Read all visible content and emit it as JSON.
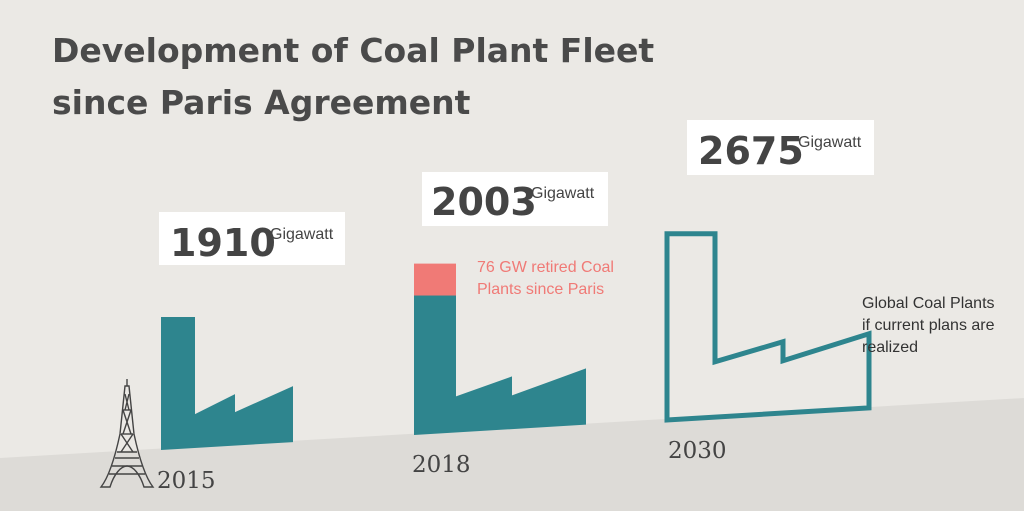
{
  "title": [
    "Development of Coal Plant Fleet",
    "since Paris Agreement"
  ],
  "colors": {
    "background": "#ebe9e5",
    "ground": "#dddbd7",
    "fleet": "#2e858e",
    "retired": "#f07a76",
    "text": "#444444"
  },
  "chart_data": {
    "type": "bar",
    "categories": [
      "2015",
      "2018",
      "2030"
    ],
    "unit": "Gigawatt",
    "series": [
      {
        "values": [
          1910,
          2003,
          2675
        ]
      }
    ],
    "retired_2018_gw": 76,
    "annotations": [
      {
        "category": "2018",
        "lines": [
          "76 GW retired Coal",
          "Plants since Paris"
        ]
      },
      {
        "category": "2030",
        "lines": [
          "Global Coal Plants",
          "if current plans are",
          "realized"
        ]
      }
    ],
    "icons": [
      "eiffel-tower-icon",
      "factory-icon"
    ]
  }
}
